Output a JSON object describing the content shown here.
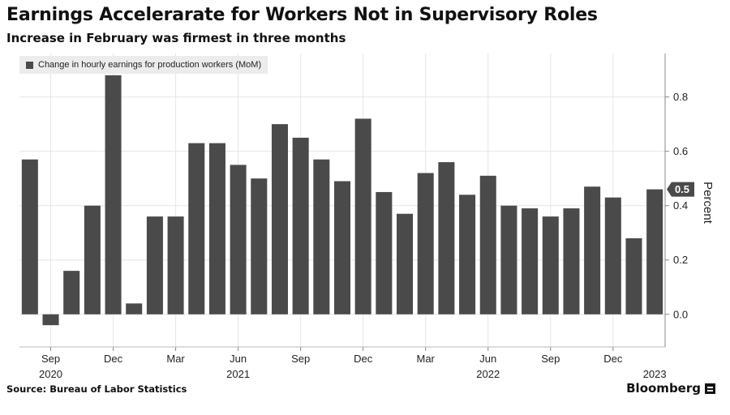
{
  "header": {
    "title": "Earnings Accelerarate for Workers Not in Supervisory Roles",
    "subtitle": "Increase in February was firmest in three months"
  },
  "legend": {
    "label": "Change in hourly earnings for production workers (MoM)"
  },
  "footer": {
    "source": "Source: Bureau of Labor Statistics",
    "brand": "Bloomberg"
  },
  "colors": {
    "bar": "#4a4a4a",
    "grid": "#e6e6e6",
    "last_badge": "#4a4a4a"
  },
  "chart_data": {
    "type": "bar",
    "series": [
      {
        "name": "Change in hourly earnings for production workers (MoM)",
        "values": [
          0.57,
          -0.04,
          0.16,
          0.4,
          0.88,
          0.04,
          0.36,
          0.36,
          0.63,
          0.63,
          0.55,
          0.5,
          0.7,
          0.65,
          0.57,
          0.49,
          0.72,
          0.45,
          0.37,
          0.52,
          0.56,
          0.44,
          0.51,
          0.4,
          0.39,
          0.36,
          0.39,
          0.47,
          0.43,
          0.28,
          0.46
        ]
      }
    ],
    "x_tick_labels": [
      "Sep",
      "Dec",
      "Mar",
      "Jun",
      "Sep",
      "Dec",
      "Mar",
      "Jun",
      "Sep",
      "Dec"
    ],
    "x_tick_indices": [
      1,
      4,
      7,
      10,
      13,
      16,
      19,
      22,
      25,
      28
    ],
    "x_year_labels": [
      "2020",
      "2021",
      "2022",
      "2023"
    ],
    "x_year_indices": [
      1,
      10,
      22,
      30
    ],
    "y_ticks": [
      0.0,
      0.2,
      0.4,
      0.6,
      0.8
    ],
    "y_tick_labels": [
      "0.0",
      "0.2",
      "0.4",
      "0.6",
      "0.8"
    ],
    "ylim": [
      -0.12,
      0.96
    ],
    "ylabel": "Percent",
    "last_value_label": "0.5",
    "title": "Earnings Accelerarate for Workers Not in Supervisory Roles",
    "grid": true
  }
}
